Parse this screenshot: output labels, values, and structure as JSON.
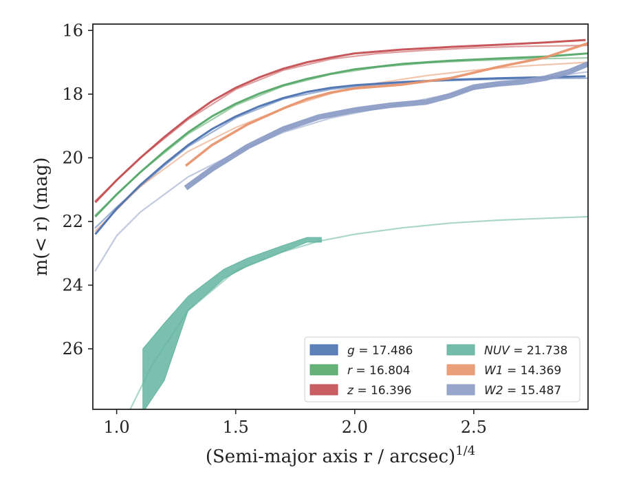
{
  "chart_data": {
    "type": "line",
    "xlabel": "(Semi-major axis r / arcsec)",
    "xlabel_sup": "1/4",
    "ylabel": "m(< r) (mag)",
    "xlim": [
      0.9,
      2.98
    ],
    "ylim": [
      27.9,
      15.8
    ],
    "y_inverted": true,
    "x_ticks": [
      1.0,
      1.5,
      2.0,
      2.5
    ],
    "x_tick_labels": [
      "1.0",
      "1.5",
      "2.0",
      "2.5"
    ],
    "y_ticks": [
      16,
      18,
      20,
      22,
      24,
      26
    ],
    "y_tick_labels": [
      "16",
      "18",
      "20",
      "22",
      "24",
      "26"
    ],
    "grid": false,
    "legend_position": "lower-right",
    "legend_columns": 2,
    "series": [
      {
        "name": "g = 17.486",
        "band": "g",
        "mag": "17.486",
        "color": "#4c72b0",
        "data": [
          [
            0.91,
            22.4
          ],
          [
            1.0,
            21.6
          ],
          [
            1.1,
            20.85
          ],
          [
            1.2,
            20.2
          ],
          [
            1.3,
            19.6
          ],
          [
            1.4,
            19.1
          ],
          [
            1.5,
            18.7
          ],
          [
            1.6,
            18.38
          ],
          [
            1.7,
            18.12
          ],
          [
            1.8,
            17.93
          ],
          [
            1.9,
            17.8
          ],
          [
            2.0,
            17.72
          ],
          [
            2.2,
            17.62
          ],
          [
            2.4,
            17.55
          ],
          [
            2.6,
            17.5
          ],
          [
            2.8,
            17.47
          ],
          [
            2.97,
            17.44
          ]
        ],
        "model": [
          [
            0.91,
            22.2
          ],
          [
            1.0,
            21.55
          ],
          [
            1.1,
            20.9
          ],
          [
            1.2,
            20.25
          ],
          [
            1.3,
            19.65
          ],
          [
            1.5,
            18.75
          ],
          [
            1.7,
            18.15
          ],
          [
            1.9,
            17.85
          ],
          [
            2.1,
            17.7
          ],
          [
            2.3,
            17.6
          ],
          [
            2.5,
            17.55
          ],
          [
            2.7,
            17.52
          ],
          [
            2.98,
            17.5
          ]
        ]
      },
      {
        "name": "r = 16.804",
        "band": "r",
        "mag": "16.804",
        "color": "#55a868",
        "data": [
          [
            0.91,
            21.85
          ],
          [
            1.0,
            21.15
          ],
          [
            1.1,
            20.45
          ],
          [
            1.2,
            19.8
          ],
          [
            1.3,
            19.2
          ],
          [
            1.4,
            18.7
          ],
          [
            1.5,
            18.3
          ],
          [
            1.6,
            17.98
          ],
          [
            1.7,
            17.72
          ],
          [
            1.8,
            17.52
          ],
          [
            1.9,
            17.36
          ],
          [
            2.0,
            17.22
          ],
          [
            2.2,
            17.05
          ],
          [
            2.4,
            16.95
          ],
          [
            2.6,
            16.88
          ],
          [
            2.8,
            16.82
          ],
          [
            2.98,
            16.72
          ]
        ],
        "model": [
          [
            0.91,
            21.8
          ],
          [
            1.1,
            20.45
          ],
          [
            1.3,
            19.25
          ],
          [
            1.5,
            18.35
          ],
          [
            1.7,
            17.75
          ],
          [
            1.9,
            17.38
          ],
          [
            2.1,
            17.15
          ],
          [
            2.3,
            17.02
          ],
          [
            2.5,
            16.95
          ],
          [
            2.7,
            16.9
          ],
          [
            2.98,
            16.86
          ]
        ]
      },
      {
        "name": "z = 16.396",
        "band": "z",
        "mag": "16.396",
        "color": "#c44e52",
        "data": [
          [
            0.91,
            21.4
          ],
          [
            1.0,
            20.7
          ],
          [
            1.1,
            20.0
          ],
          [
            1.2,
            19.35
          ],
          [
            1.3,
            18.75
          ],
          [
            1.4,
            18.22
          ],
          [
            1.5,
            17.8
          ],
          [
            1.6,
            17.47
          ],
          [
            1.7,
            17.2
          ],
          [
            1.8,
            17.0
          ],
          [
            1.9,
            16.85
          ],
          [
            2.0,
            16.72
          ],
          [
            2.2,
            16.6
          ],
          [
            2.4,
            16.52
          ],
          [
            2.6,
            16.45
          ],
          [
            2.8,
            16.38
          ],
          [
            2.97,
            16.3
          ]
        ],
        "model": [
          [
            0.91,
            21.35
          ],
          [
            1.1,
            20.0
          ],
          [
            1.3,
            18.8
          ],
          [
            1.5,
            17.85
          ],
          [
            1.7,
            17.25
          ],
          [
            1.9,
            16.9
          ],
          [
            2.1,
            16.72
          ],
          [
            2.3,
            16.62
          ],
          [
            2.5,
            16.55
          ],
          [
            2.7,
            16.5
          ],
          [
            2.98,
            16.47
          ]
        ]
      },
      {
        "name": "NUV = 21.738",
        "band": "NUV",
        "mag": "21.738",
        "color": "#64b5a0",
        "band_data": [
          [
            1.11,
            26.0,
            28.0
          ],
          [
            1.2,
            25.2,
            27.0
          ],
          [
            1.3,
            24.35,
            24.8
          ],
          [
            1.45,
            23.5,
            23.8
          ],
          [
            1.55,
            23.15,
            23.4
          ],
          [
            1.7,
            22.75,
            22.95
          ],
          [
            1.8,
            22.5,
            22.65
          ],
          [
            1.86,
            22.5,
            22.65
          ]
        ],
        "model": [
          [
            1.05,
            28.0
          ],
          [
            1.15,
            26.5
          ],
          [
            1.3,
            24.8
          ],
          [
            1.5,
            23.55
          ],
          [
            1.7,
            22.95
          ],
          [
            1.85,
            22.62
          ],
          [
            2.0,
            22.4
          ],
          [
            2.2,
            22.2
          ],
          [
            2.4,
            22.05
          ],
          [
            2.6,
            21.96
          ],
          [
            2.8,
            21.9
          ],
          [
            2.98,
            21.85
          ]
        ]
      },
      {
        "name": "W1 = 14.369",
        "band": "W1",
        "mag": "14.369",
        "color": "#e8956d",
        "data": [
          [
            1.29,
            20.25
          ],
          [
            1.4,
            19.6
          ],
          [
            1.55,
            18.95
          ],
          [
            1.7,
            18.45
          ],
          [
            1.8,
            18.15
          ],
          [
            1.9,
            17.95
          ],
          [
            2.0,
            17.82
          ],
          [
            2.2,
            17.7
          ],
          [
            2.4,
            17.5
          ],
          [
            2.6,
            17.15
          ],
          [
            2.8,
            16.85
          ],
          [
            2.9,
            16.6
          ],
          [
            2.98,
            16.4
          ]
        ],
        "model": [
          [
            0.91,
            22.3
          ],
          [
            1.1,
            20.9
          ],
          [
            1.3,
            19.8
          ],
          [
            1.5,
            19.05
          ],
          [
            1.7,
            18.45
          ],
          [
            1.9,
            17.98
          ],
          [
            2.1,
            17.65
          ],
          [
            2.3,
            17.42
          ],
          [
            2.5,
            17.25
          ],
          [
            2.7,
            17.12
          ],
          [
            2.98,
            17.0
          ]
        ]
      },
      {
        "name": "W2 = 15.487",
        "band": "W2",
        "mag": "15.487",
        "color": "#8c9dc6",
        "data": [
          [
            1.29,
            20.95
          ],
          [
            1.4,
            20.35
          ],
          [
            1.55,
            19.65
          ],
          [
            1.7,
            19.1
          ],
          [
            1.85,
            18.72
          ],
          [
            2.0,
            18.5
          ],
          [
            2.15,
            18.35
          ],
          [
            2.3,
            18.25
          ],
          [
            2.4,
            18.05
          ],
          [
            2.5,
            17.78
          ],
          [
            2.6,
            17.68
          ],
          [
            2.7,
            17.62
          ],
          [
            2.8,
            17.5
          ],
          [
            2.9,
            17.3
          ],
          [
            2.98,
            17.05
          ]
        ],
        "model": [
          [
            0.91,
            23.55
          ],
          [
            1.0,
            22.45
          ],
          [
            1.1,
            21.7
          ],
          [
            1.3,
            20.6
          ],
          [
            1.5,
            19.85
          ],
          [
            1.7,
            19.2
          ],
          [
            1.9,
            18.75
          ],
          [
            2.1,
            18.45
          ],
          [
            2.3,
            18.15
          ],
          [
            2.5,
            17.85
          ],
          [
            2.7,
            17.58
          ],
          [
            2.98,
            17.3
          ]
        ]
      }
    ]
  }
}
